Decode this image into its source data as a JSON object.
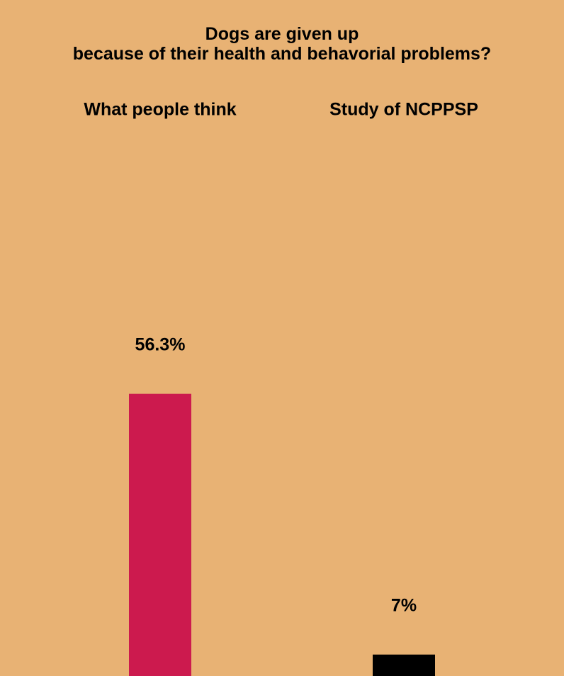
{
  "chart_data": {
    "type": "bar",
    "title": "Dogs are given up\nbecause of their health and behavorial problems?",
    "categories": [
      "What people think",
      "Study of NCPPSP"
    ],
    "values": [
      56.3,
      7
    ],
    "value_labels": [
      "56.3%",
      "7%"
    ],
    "colors": [
      "#cc1a4e",
      "#000000"
    ],
    "background": "#e8b274"
  }
}
